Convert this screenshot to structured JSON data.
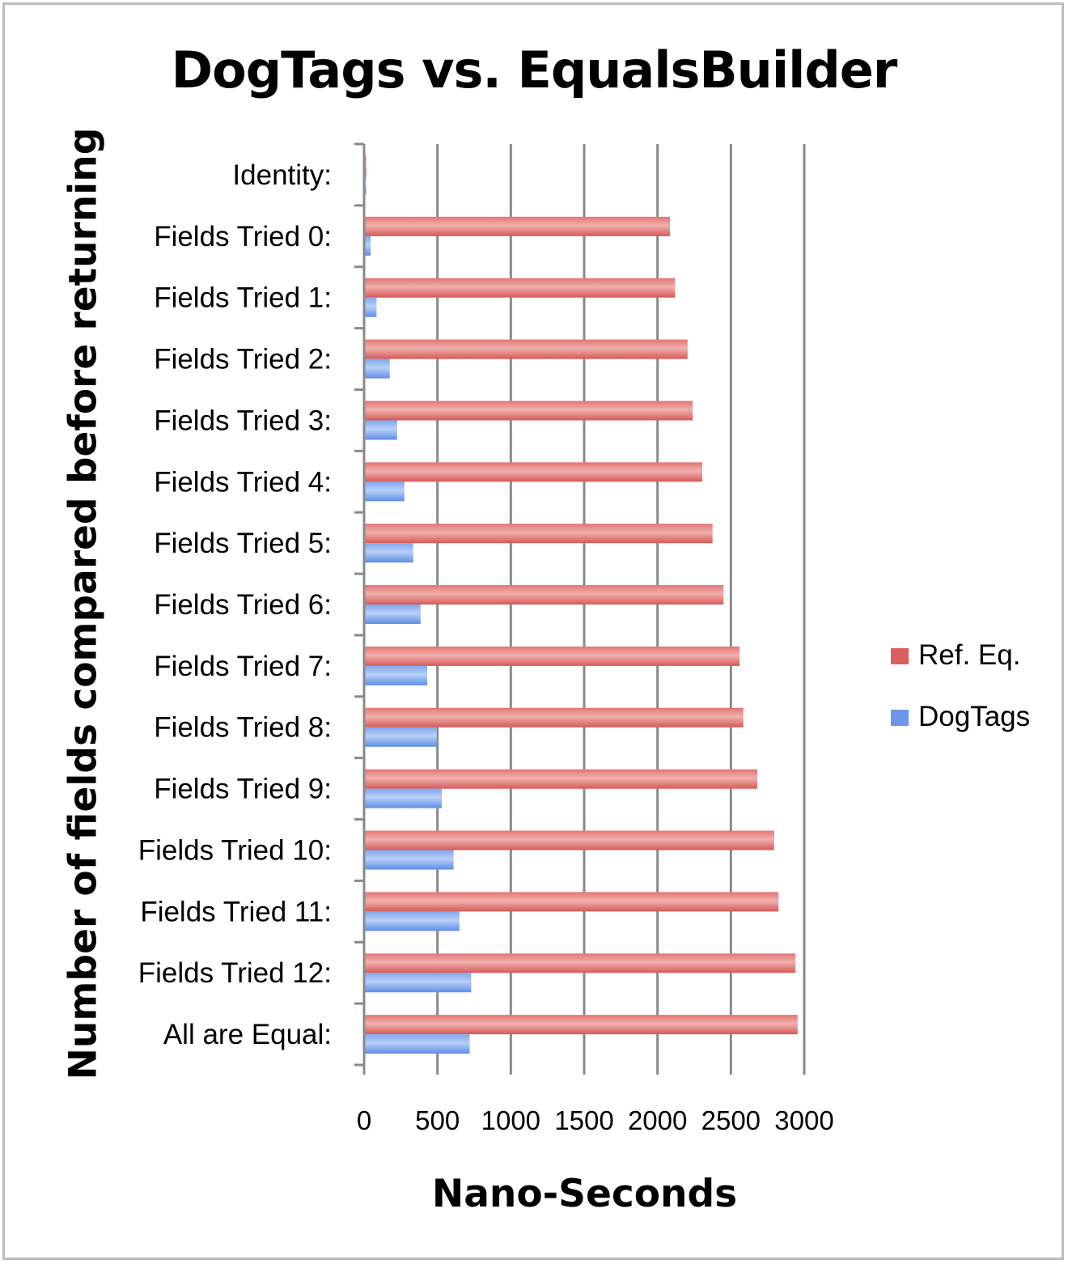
{
  "chart_data": {
    "type": "bar",
    "orientation": "horizontal",
    "title": "DogTags vs. EqualsBuilder",
    "xlabel": "Nano-Seconds",
    "ylabel": "Number of fields compared before returning",
    "xlim": [
      0,
      3000
    ],
    "xticks": [
      "0",
      "500",
      "1000",
      "1500",
      "2000",
      "2500",
      "3000"
    ],
    "grid": "vertical",
    "legend_position": "right",
    "categories": [
      "Identity:",
      "Fields Tried  0:",
      "Fields Tried  1:",
      "Fields Tried  2:",
      "Fields Tried  3:",
      "Fields Tried  4:",
      "Fields Tried  5:",
      "Fields Tried  6:",
      "Fields Tried  7:",
      "Fields Tried  8:",
      "Fields Tried  9:",
      "Fields Tried 10:",
      "Fields Tried 11:",
      "Fields Tried 12:",
      "All are Equal:"
    ],
    "series": [
      {
        "name": "Ref. Eq.",
        "color": "#d9605e",
        "light": "#f0a5a3",
        "values": [
          15,
          2085,
          2120,
          2205,
          2240,
          2305,
          2375,
          2450,
          2560,
          2585,
          2680,
          2795,
          2825,
          2940,
          2955
        ]
      },
      {
        "name": "DogTags",
        "color": "#5f8ee8",
        "light": "#a9c6f7",
        "values": [
          15,
          45,
          85,
          175,
          225,
          275,
          335,
          385,
          430,
          495,
          530,
          610,
          650,
          730,
          720
        ]
      }
    ]
  }
}
